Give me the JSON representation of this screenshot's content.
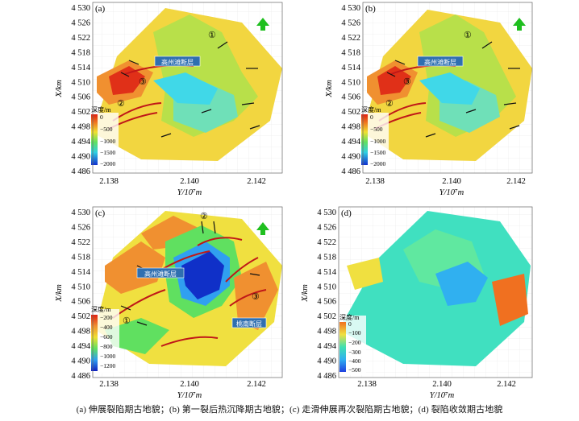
{
  "caption": "(a) 伸展裂陷期古地貌；(b) 第一裂后热沉降期古地貌；(c) 走滑伸展再次裂陷期古地貌；(d) 裂陷收敛期古地貌",
  "axes": {
    "ylabel": "X/km",
    "xlabel": "Y/10⁷m",
    "y_ticks": [
      "4 530",
      "4 526",
      "4 522",
      "4 518",
      "4 514",
      "4 510",
      "4 506",
      "4 502",
      "4 498",
      "4 494",
      "4 490",
      "4 486"
    ],
    "x_ticks": [
      "2.138",
      "2.140",
      "2.142"
    ]
  },
  "panels": [
    {
      "letter": "(a)",
      "legend_title": "深度/m",
      "legend_ticks": [
        "0",
        "−500",
        "−1000",
        "−1500",
        "−2000"
      ],
      "circled": [
        "①",
        "②",
        "③"
      ],
      "fault_labels": [
        "高州滩断层"
      ]
    },
    {
      "letter": "(b)",
      "legend_title": "深度/m",
      "legend_ticks": [
        "0",
        "−500",
        "−1000",
        "−1500",
        "−2000"
      ],
      "circled": [
        "①",
        "②",
        "③"
      ],
      "fault_labels": [
        "高州滩断层"
      ]
    },
    {
      "letter": "(c)",
      "legend_title": "深度/m",
      "legend_ticks": [
        "−200",
        "−400",
        "−600",
        "−800",
        "−1000",
        "−1200"
      ],
      "circled": [
        "①",
        "②",
        "③"
      ],
      "fault_labels": [
        "高州滩断层",
        "桃南断层"
      ]
    },
    {
      "letter": "(d)",
      "legend_title": "深度/m",
      "legend_ticks": [
        "0",
        "−100",
        "−200",
        "−300",
        "−400",
        "−500"
      ],
      "circled": [],
      "fault_labels": []
    }
  ],
  "colors": {
    "north_arrow": "#1fbf1f",
    "fault": "#c01818",
    "fault_label_bg": "#2f6fb0"
  }
}
